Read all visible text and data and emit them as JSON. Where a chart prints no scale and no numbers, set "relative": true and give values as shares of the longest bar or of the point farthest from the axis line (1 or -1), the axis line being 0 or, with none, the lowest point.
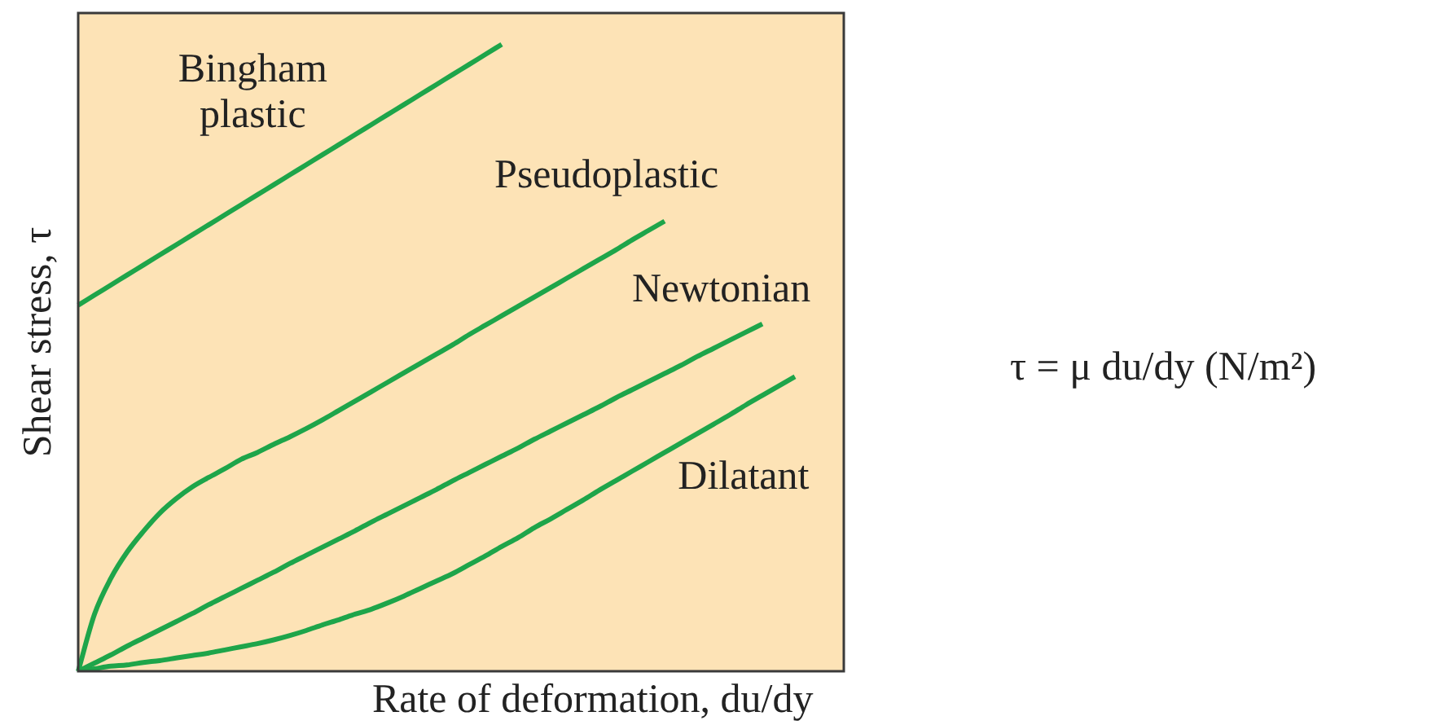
{
  "chart_data": {
    "type": "line",
    "xlabel": "Rate of deformation, du/dy",
    "ylabel": "Shear stress, τ",
    "annotations": [
      "τ = μ du/dy (N/m²)"
    ],
    "relative": true,
    "categories": [
      null,
      null,
      null,
      null,
      null,
      null,
      null,
      null,
      null,
      null,
      null,
      null,
      null,
      null,
      null,
      null,
      null,
      null,
      null,
      null,
      null,
      null,
      null,
      null,
      null,
      null,
      null,
      null,
      null,
      null,
      null,
      null,
      null,
      null,
      null,
      null,
      null,
      null,
      null,
      null,
      null,
      null,
      null,
      null,
      null,
      null,
      null,
      null
    ],
    "series": [
      {
        "name": "Bingham plastic",
        "color": "#1ea54a",
        "values": [
          0.584,
          0.6,
          0.616,
          0.632,
          0.648,
          0.664,
          0.68,
          0.696,
          0.712,
          0.728,
          0.744,
          0.76,
          0.776,
          0.792,
          0.808,
          0.824,
          0.84,
          0.856,
          0.872,
          0.888,
          0.904,
          0.92,
          0.936,
          0.952,
          0.968,
          0.984,
          1,
          null,
          null,
          null,
          null,
          null,
          null,
          null,
          null,
          null,
          null,
          null,
          null,
          null,
          null,
          null,
          null,
          null,
          null,
          null,
          null,
          null
        ]
      },
      {
        "name": "Pseudoplastic",
        "color": "#1ea54a",
        "values": [
          0,
          0.091,
          0.148,
          0.19,
          0.223,
          0.252,
          0.275,
          0.294,
          0.309,
          0.323,
          0.338,
          0.349,
          0.362,
          0.374,
          0.387,
          0.401,
          0.416,
          0.431,
          0.446,
          0.461,
          0.476,
          0.491,
          0.506,
          0.521,
          0.537,
          0.552,
          0.567,
          0.582,
          0.597,
          0.612,
          0.627,
          0.642,
          0.657,
          0.672,
          0.688,
          0.703,
          0.718,
          null,
          null,
          null,
          null,
          null,
          null,
          null,
          null,
          null,
          null,
          null
        ]
      },
      {
        "name": "Newtonian",
        "color": "#1ea54a",
        "values": [
          0,
          0.013,
          0.026,
          0.04,
          0.053,
          0.066,
          0.079,
          0.092,
          0.106,
          0.119,
          0.132,
          0.145,
          0.158,
          0.172,
          0.185,
          0.198,
          0.211,
          0.224,
          0.238,
          0.251,
          0.264,
          0.277,
          0.29,
          0.304,
          0.317,
          0.33,
          0.343,
          0.356,
          0.37,
          0.383,
          0.396,
          0.409,
          0.422,
          0.436,
          0.449,
          0.462,
          0.475,
          0.488,
          0.502,
          0.515,
          0.528,
          0.541,
          0.554,
          null,
          null,
          null,
          null,
          null
        ]
      },
      {
        "name": "Dilatant",
        "color": "#1ea54a",
        "values": [
          0,
          0.004,
          0.008,
          0.01,
          0.014,
          0.017,
          0.021,
          0.025,
          0.029,
          0.034,
          0.039,
          0.044,
          0.05,
          0.057,
          0.065,
          0.074,
          0.082,
          0.091,
          0.099,
          0.109,
          0.12,
          0.132,
          0.144,
          0.156,
          0.17,
          0.184,
          0.199,
          0.213,
          0.229,
          0.243,
          0.258,
          0.273,
          0.289,
          0.304,
          0.319,
          0.334,
          0.349,
          0.364,
          0.379,
          0.394,
          0.409,
          0.425,
          0.44,
          0.455,
          0.47,
          null,
          null,
          null
        ]
      }
    ]
  }
}
